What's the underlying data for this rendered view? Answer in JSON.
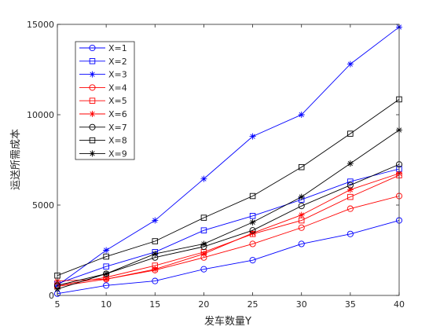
{
  "chart_data": {
    "type": "line",
    "xlabel": "发车数量Y",
    "ylabel": "运送所需成本",
    "xlim": [
      5,
      40
    ],
    "ylim": [
      0,
      15000
    ],
    "x_ticks": [
      5,
      10,
      15,
      20,
      25,
      30,
      35,
      40
    ],
    "y_ticks": [
      0,
      5000,
      10000,
      15000
    ],
    "grid": false,
    "legend_position": "top-left",
    "x": [
      5,
      10,
      15,
      20,
      25,
      30,
      35,
      40
    ],
    "series": [
      {
        "name": "X=1",
        "color": "#0000ff",
        "marker": "circle",
        "values": [
          100,
          550,
          800,
          1450,
          1950,
          2850,
          3400,
          4150
        ]
      },
      {
        "name": "X=2",
        "color": "#0000ff",
        "marker": "square",
        "values": [
          650,
          1600,
          2400,
          3600,
          4400,
          5300,
          6300,
          7000
        ]
      },
      {
        "name": "X=3",
        "color": "#0000ff",
        "marker": "asterisk",
        "values": [
          550,
          2500,
          4150,
          6450,
          8800,
          10000,
          12800,
          14850
        ]
      },
      {
        "name": "X=4",
        "color": "#ff0000",
        "marker": "circle",
        "values": [
          500,
          900,
          1400,
          2100,
          2850,
          3750,
          4800,
          5500
        ]
      },
      {
        "name": "X=5",
        "color": "#ff0000",
        "marker": "square",
        "values": [
          550,
          1000,
          1650,
          2400,
          3400,
          4150,
          5450,
          6650
        ]
      },
      {
        "name": "X=6",
        "color": "#ff0000",
        "marker": "asterisk",
        "values": [
          800,
          900,
          1450,
          2300,
          3450,
          4450,
          5850,
          6750
        ]
      },
      {
        "name": "X=7",
        "color": "#000000",
        "marker": "circle",
        "values": [
          550,
          1200,
          2100,
          2700,
          3600,
          4950,
          6100,
          7250
        ]
      },
      {
        "name": "X=8",
        "color": "#000000",
        "marker": "square",
        "values": [
          1100,
          2150,
          3000,
          4300,
          5500,
          7100,
          8950,
          10850
        ]
      },
      {
        "name": "X=9",
        "color": "#000000",
        "marker": "asterisk",
        "values": [
          350,
          1200,
          2300,
          2850,
          4050,
          5450,
          7300,
          9150
        ]
      }
    ]
  }
}
